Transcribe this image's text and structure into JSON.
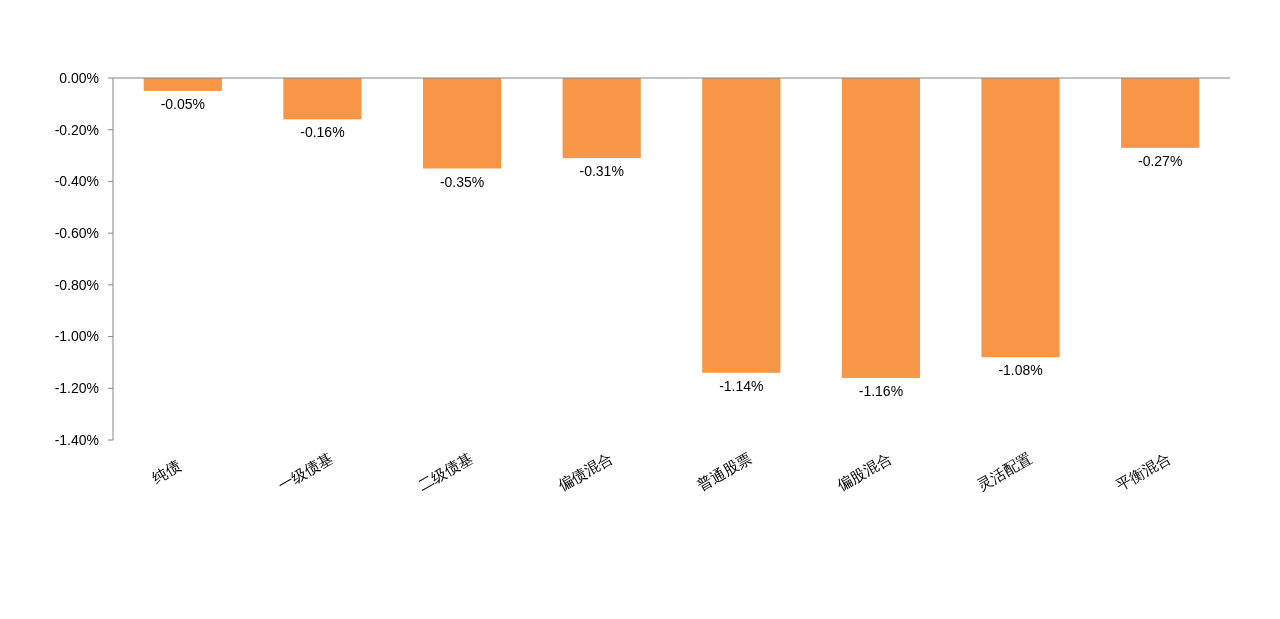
{
  "chart_data": {
    "type": "bar",
    "categories": [
      "纯债",
      "一级债基",
      "二级债基",
      "偏债混合",
      "普通股票",
      "偏股混合",
      "灵活配置",
      "平衡混合"
    ],
    "values": [
      -0.05,
      -0.16,
      -0.35,
      -0.31,
      -1.14,
      -1.16,
      -1.08,
      -0.27
    ],
    "color": "#f79646",
    "value_labels": [
      "-0.05%",
      "-0.16%",
      "-0.35%",
      "-0.31%",
      "-1.14%",
      "-1.16%",
      "-1.08%",
      "-0.27%"
    ],
    "ylim": [
      -1.4,
      0
    ],
    "yticks": [
      {
        "value": 0,
        "label": "0.00%"
      },
      {
        "value": -0.2,
        "label": "-0.20%"
      },
      {
        "value": -0.4,
        "label": "-0.40%"
      },
      {
        "value": -0.6,
        "label": "-0.60%"
      },
      {
        "value": -0.8,
        "label": "-0.80%"
      },
      {
        "value": -1.0,
        "label": "-1.00%"
      },
      {
        "value": -1.2,
        "label": "-1.20%"
      },
      {
        "value": -1.4,
        "label": "-1.40%"
      }
    ],
    "grid": false
  }
}
